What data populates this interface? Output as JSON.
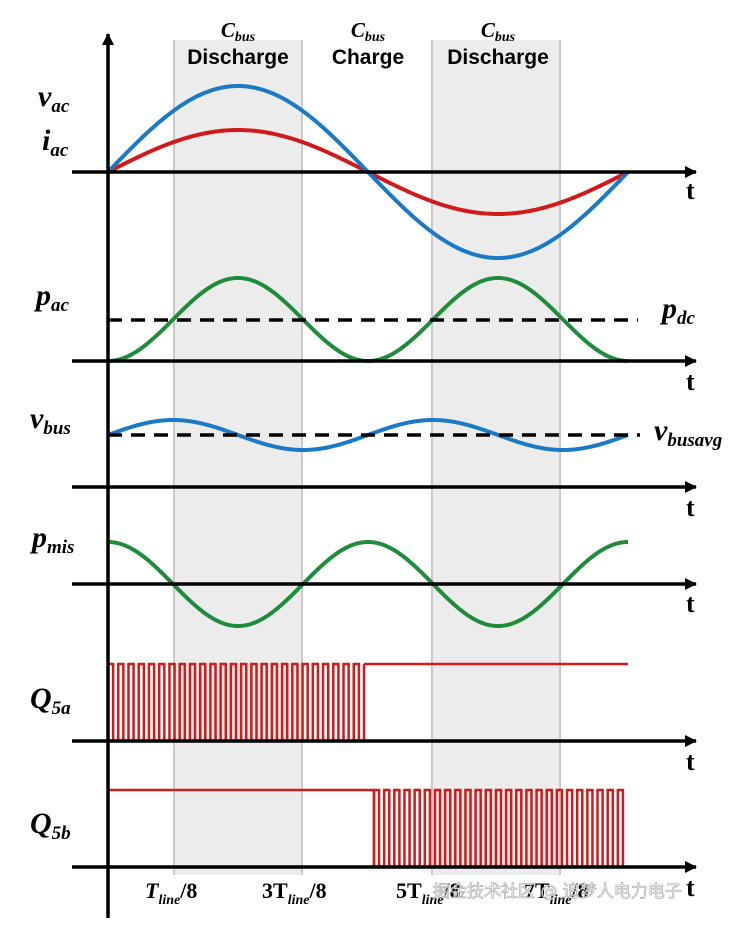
{
  "header": {
    "cbus_symbol": "C",
    "cbus_sub": "bus",
    "phases": [
      "Discharge",
      "Charge",
      "Discharge"
    ]
  },
  "signals": {
    "v_ac": {
      "main": "v",
      "sub": "ac"
    },
    "i_ac": {
      "main": "i",
      "sub": "ac"
    },
    "p_ac": {
      "main": "p",
      "sub": "ac"
    },
    "p_dc": {
      "main": "p",
      "sub": "dc"
    },
    "v_bus": {
      "main": "v",
      "sub": "bus"
    },
    "v_busavg": {
      "main": "v",
      "sub": "busavg"
    },
    "p_mis": {
      "main": "p",
      "sub": "mis"
    },
    "q5a": {
      "main": "Q",
      "sub": "5a"
    },
    "q5b": {
      "main": "Q",
      "sub": "5b"
    }
  },
  "axis_label": "t",
  "ticks": [
    {
      "pre": "T",
      "sub": "line",
      "post": "/8"
    },
    {
      "pre": "3T",
      "sub": "line",
      "post": "/8"
    },
    {
      "pre": "5T",
      "sub": "line",
      "post": "/8"
    },
    {
      "pre": "7T",
      "sub": "line",
      "post": "/8"
    }
  ],
  "watermark": "掘金技术社区 @ 追梦人电力电子",
  "colors": {
    "v_ac": "#1a7ac8",
    "i_ac": "#d21a1a",
    "p_ac": "#1e8c3a",
    "p_dc": "#000000",
    "v_bus": "#1a7ac8",
    "p_mis": "#1e8c3a",
    "gate": "#d21a1a",
    "band": "#ebebeb"
  }
}
